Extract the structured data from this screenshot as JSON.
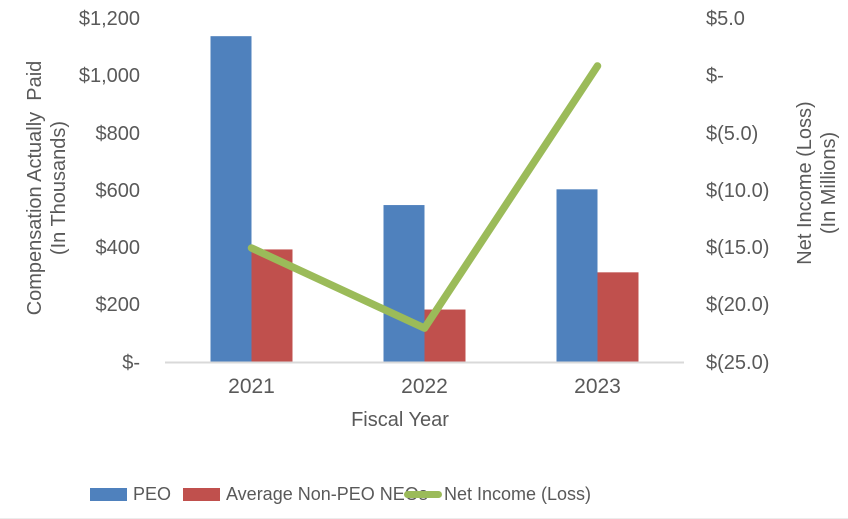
{
  "chart_data": {
    "type": "combo",
    "categories": [
      "2021",
      "2022",
      "2023"
    ],
    "series": [
      {
        "name": "PEO",
        "chart_type": "bar",
        "axis": "left",
        "color": "#4F81BD",
        "values": [
          1140,
          550,
          605
        ]
      },
      {
        "name": "Average Non-PEO NEOs",
        "chart_type": "bar",
        "axis": "left",
        "color": "#C0504D",
        "values": [
          395,
          185,
          315
        ]
      },
      {
        "name": "Net Income (Loss)",
        "chart_type": "line",
        "axis": "right",
        "color": "#9BBB59",
        "values": [
          -15.0,
          -22.0,
          0.9
        ]
      }
    ],
    "xlabel": "Fiscal Year",
    "left_axis": {
      "title_line1": "Compensation Actually  Paid",
      "title_line2": "(In Thousands)",
      "tick_labels": [
        "$1,200",
        "$1,000",
        "$800",
        "$600",
        "$400",
        "$200",
        "$-"
      ],
      "tick_values": [
        1200,
        1000,
        800,
        600,
        400,
        200,
        0
      ],
      "min": 0,
      "max": 1200
    },
    "right_axis": {
      "title_line1": "Net Income (Loss)",
      "title_line2": "(In Millions)",
      "tick_labels": [
        "$5.0",
        "$-",
        "$(5.0)",
        "$(10.0)",
        "$(15.0)",
        "$(20.0)",
        "$(25.0)"
      ],
      "tick_values": [
        5,
        0,
        -5,
        -10,
        -15,
        -20,
        -25
      ],
      "min": -25,
      "max": 5
    },
    "legend": {
      "position": "bottom",
      "items": [
        "PEO",
        "Average Non-PEO NEOs",
        "Net Income (Loss)"
      ]
    },
    "grid": false,
    "background": "#FFFFFF"
  },
  "styles": {
    "text_color": "#595959",
    "axis_line_color": "#D9D9D9",
    "bottom_rule_color": "#ECECEC"
  }
}
